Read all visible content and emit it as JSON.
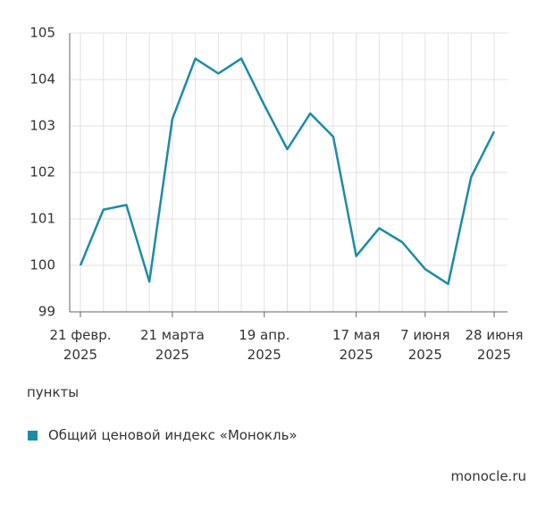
{
  "chart_data": {
    "type": "line",
    "y_label": "пункты",
    "source": "monocle.ru",
    "categories": [
      "21 февр.\n2025",
      null,
      null,
      null,
      "21 марта\n2025",
      null,
      null,
      null,
      "19 апр.\n2025",
      null,
      null,
      null,
      "17 мая\n2025",
      null,
      null,
      "7 июня\n2025",
      null,
      null,
      "28 июня\n2025"
    ],
    "series": [
      {
        "name": "Общий ценовой индекс «Монокль»",
        "color": "#1b8ca6",
        "values": [
          100.0,
          101.2,
          101.3,
          99.65,
          103.15,
          104.45,
          104.13,
          104.45,
          103.45,
          102.5,
          103.27,
          102.77,
          100.2,
          100.8,
          100.5,
          99.92,
          99.6,
          101.9,
          102.88
        ]
      }
    ],
    "ylim": [
      99,
      105
    ],
    "yticks": [
      99,
      100,
      101,
      102,
      103,
      104,
      105
    ],
    "grid": true
  }
}
